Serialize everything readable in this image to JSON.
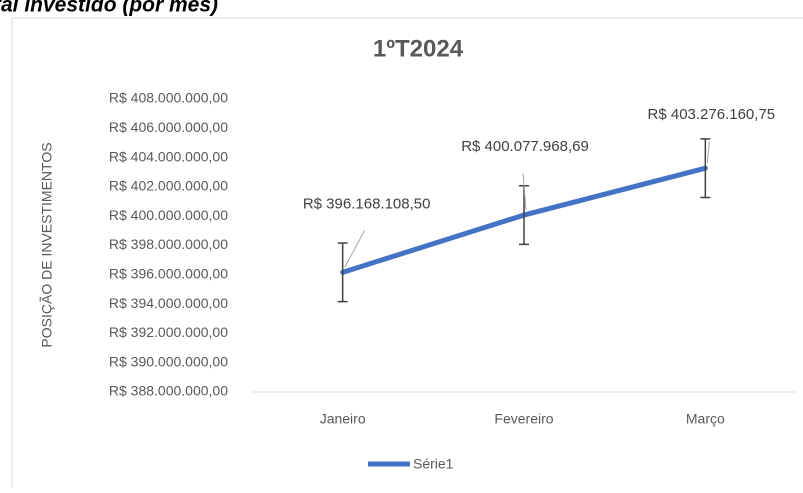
{
  "heading": "tal investido (por mês)",
  "chart_data": {
    "type": "line",
    "title": "1ºT2024",
    "y_label": "POSIÇÃO DE INVESTIMENTOS",
    "categories": [
      "Janeiro",
      "Fevereiro",
      "Março"
    ],
    "series": [
      {
        "name": "Série1",
        "color": "#4472c4",
        "values": [
          396168108.5,
          400077968.69,
          403276160.75
        ],
        "value_labels": [
          "R$ 396.168.108,50",
          "R$ 400.077.968,69",
          "R$ 403.276.160,75"
        ],
        "errors": [
          2000000,
          2000000,
          2000000
        ]
      }
    ],
    "ylim": [
      388000000,
      408000000
    ],
    "yticks": [
      {
        "value": 388000000,
        "label": "R$ 388.000.000,00"
      },
      {
        "value": 390000000,
        "label": "R$ 390.000.000,00"
      },
      {
        "value": 392000000,
        "label": "R$ 392.000.000,00"
      },
      {
        "value": 394000000,
        "label": "R$ 394.000.000,00"
      },
      {
        "value": 396000000,
        "label": "R$ 396.000.000,00"
      },
      {
        "value": 398000000,
        "label": "R$ 398.000.000,00"
      },
      {
        "value": 400000000,
        "label": "R$ 400.000.000,00"
      },
      {
        "value": 402000000,
        "label": "R$ 402.000.000,00"
      },
      {
        "value": 404000000,
        "label": "R$ 404.000.000,00"
      },
      {
        "value": 406000000,
        "label": "R$ 406.000.000,00"
      },
      {
        "value": 408000000,
        "label": "R$ 408.000.000,00"
      }
    ],
    "grid": false,
    "legend": "bottom"
  }
}
